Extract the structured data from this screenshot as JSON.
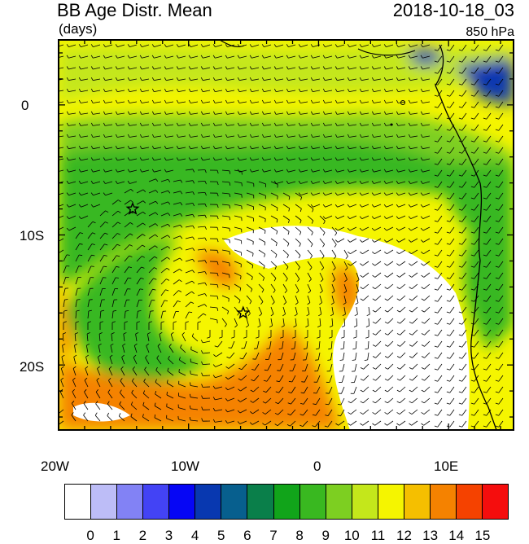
{
  "header": {
    "title": "BB Age Distr. Mean",
    "units": "(days)",
    "datetime": "2018-10-18_03",
    "level": "850 hPa"
  },
  "map": {
    "lon_range": [
      -20,
      15
    ],
    "lat_range": [
      -25,
      5
    ],
    "x_tick_labels": [
      "20W",
      "10W",
      "0",
      "10E"
    ],
    "y_tick_labels": [
      "0",
      "10S",
      "20S"
    ],
    "markers": [
      {
        "name": "star-marker-1",
        "lon": -14.3,
        "lat": -8.0
      },
      {
        "name": "star-marker-2",
        "lon": -5.8,
        "lat": -16.0
      }
    ]
  },
  "colorbar": {
    "tick_labels": [
      "0",
      "1",
      "2",
      "3",
      "4",
      "5",
      "6",
      "7",
      "8",
      "9",
      "10",
      "11",
      "12",
      "13",
      "14",
      "15"
    ],
    "colors": [
      "#ffffff",
      "#bdbdf7",
      "#8282f5",
      "#4343f5",
      "#0606f5",
      "#0838b0",
      "#075f8e",
      "#0a7f4a",
      "#11a41a",
      "#39b820",
      "#7dcf21",
      "#c4e71b",
      "#f5f500",
      "#f5bf00",
      "#f58200",
      "#f54200",
      "#f50d0d"
    ]
  }
}
